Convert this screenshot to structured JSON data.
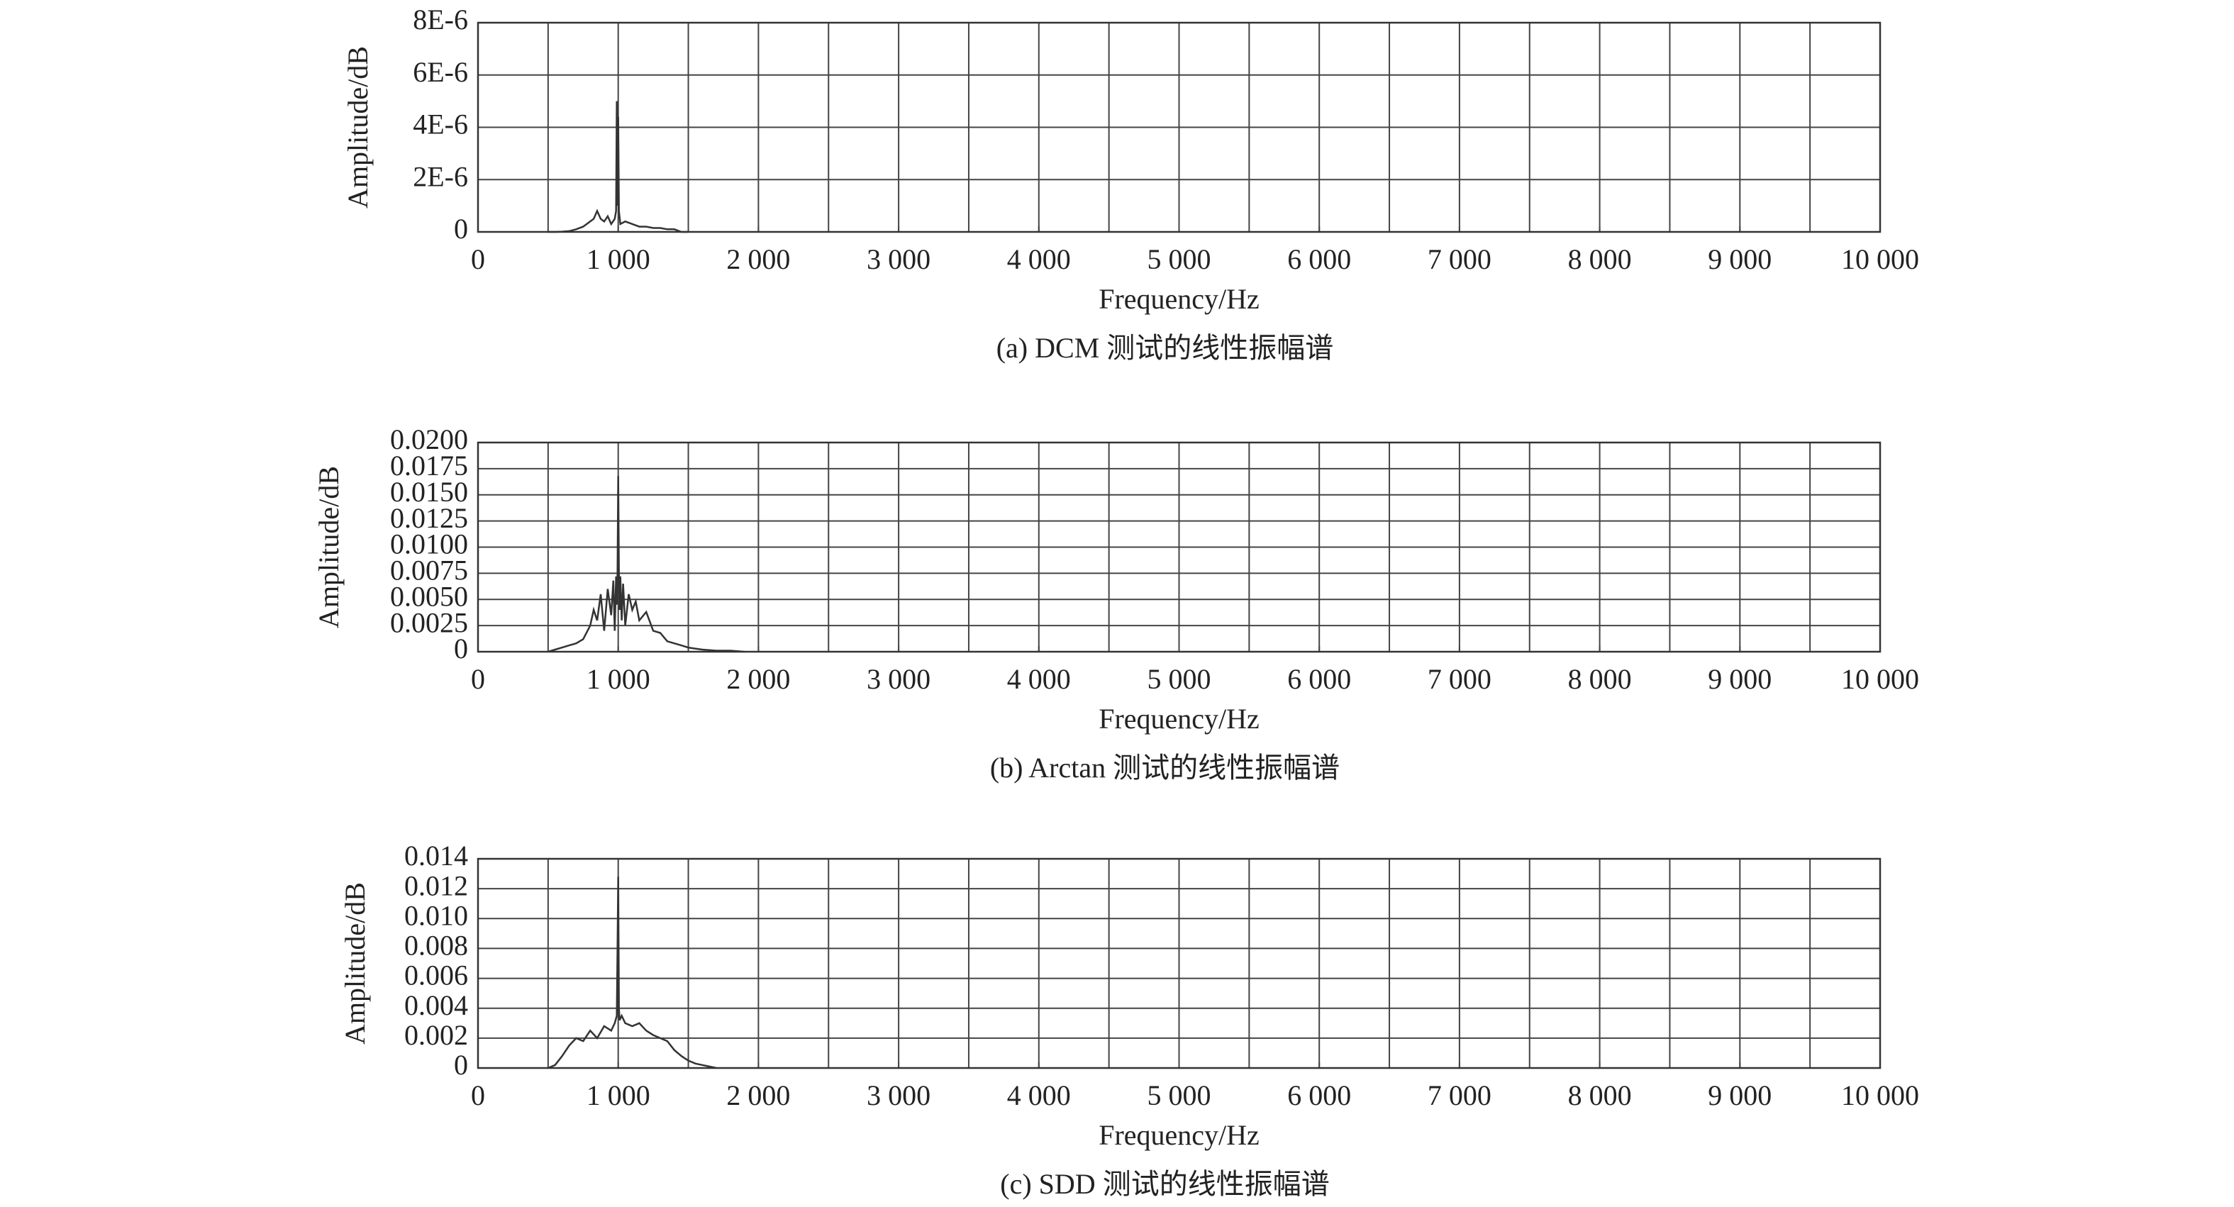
{
  "chart_data": [
    {
      "type": "line",
      "caption": "(a) DCM 测试的线性振幅谱",
      "xlabel": "Frequency/Hz",
      "ylabel": "Amplitude/dB",
      "color": "#333333",
      "grid": true,
      "x_grid_step": 500,
      "xlim": [
        0,
        10000
      ],
      "xticks": [
        0,
        {
          "value": 1000,
          "label": "1 000"
        },
        {
          "value": 2000,
          "label": "2 000"
        },
        {
          "value": 3000,
          "label": "3 000"
        },
        {
          "value": 4000,
          "label": "4 000"
        },
        {
          "value": 5000,
          "label": "5 000"
        },
        {
          "value": 6000,
          "label": "6 000"
        },
        {
          "value": 7000,
          "label": "7 000"
        },
        {
          "value": 8000,
          "label": "8 000"
        },
        {
          "value": 9000,
          "label": "9 000"
        },
        {
          "value": 10000,
          "label": "10 000"
        }
      ],
      "ylim": [
        0,
        8e-06
      ],
      "yticks": [
        0,
        {
          "value": 2e-06,
          "label": "2E-6"
        },
        {
          "value": 4e-06,
          "label": "4E-6"
        },
        {
          "value": 6e-06,
          "label": "6E-6"
        },
        {
          "value": 8e-06,
          "label": "8E-6"
        }
      ],
      "x": [
        500,
        550,
        600,
        650,
        700,
        750,
        800,
        825,
        850,
        875,
        900,
        925,
        950,
        975,
        985,
        990,
        995,
        1000,
        1005,
        1015,
        1050,
        1100,
        1150,
        1200,
        1250,
        1300,
        1350,
        1400,
        1450,
        1500
      ],
      "values": [
        0,
        0,
        1e-08,
        3e-08,
        1e-07,
        2e-07,
        4e-07,
        5e-07,
        8e-07,
        5e-07,
        4e-07,
        6e-07,
        3e-07,
        5e-07,
        8e-07,
        5e-06,
        1e-06,
        4.4e-06,
        8e-07,
        3e-07,
        4e-07,
        3e-07,
        2e-07,
        2e-07,
        1.5e-07,
        1.5e-07,
        1e-07,
        1e-07,
        0,
        0
      ]
    },
    {
      "type": "line",
      "caption": "(b) Arctan 测试的线性振幅谱",
      "xlabel": "Frequency/Hz",
      "ylabel": "Amplitude/dB",
      "color": "#333333",
      "grid": true,
      "x_grid_step": 500,
      "xlim": [
        0,
        10000
      ],
      "xticks": [
        0,
        {
          "value": 1000,
          "label": "1 000"
        },
        {
          "value": 2000,
          "label": "2 000"
        },
        {
          "value": 3000,
          "label": "3 000"
        },
        {
          "value": 4000,
          "label": "4 000"
        },
        {
          "value": 5000,
          "label": "5 000"
        },
        {
          "value": 6000,
          "label": "6 000"
        },
        {
          "value": 7000,
          "label": "7 000"
        },
        {
          "value": 8000,
          "label": "8 000"
        },
        {
          "value": 9000,
          "label": "9 000"
        },
        {
          "value": 10000,
          "label": "10 000"
        }
      ],
      "ylim": [
        0,
        0.02
      ],
      "yticks": [
        0,
        0.0025,
        {
          "value": 0.005,
          "label": "0.0050"
        },
        0.0075,
        {
          "value": 0.01,
          "label": "0.0100"
        },
        0.0125,
        {
          "value": 0.015,
          "label": "0.0150"
        },
        0.0175,
        {
          "value": 0.02,
          "label": "0.0200"
        }
      ],
      "x": [
        500,
        550,
        600,
        650,
        700,
        750,
        800,
        825,
        850,
        875,
        900,
        925,
        950,
        965,
        975,
        985,
        990,
        995,
        1000,
        1005,
        1010,
        1015,
        1025,
        1035,
        1050,
        1075,
        1100,
        1125,
        1150,
        1200,
        1250,
        1300,
        1350,
        1400,
        1450,
        1500,
        1550,
        1600,
        1700,
        1800,
        1900
      ],
      "values": [
        0,
        0.0002,
        0.0004,
        0.0006,
        0.0008,
        0.0012,
        0.0025,
        0.004,
        0.003,
        0.0055,
        0.002,
        0.006,
        0.0035,
        0.0068,
        0.002,
        0.0072,
        0.0045,
        0.0075,
        0.0168,
        0.0075,
        0.004,
        0.0072,
        0.003,
        0.0065,
        0.0025,
        0.0055,
        0.004,
        0.0048,
        0.003,
        0.0038,
        0.002,
        0.0018,
        0.001,
        0.0008,
        0.0006,
        0.0004,
        0.0003,
        0.0002,
        0.0001,
        0.0001,
        0
      ]
    },
    {
      "type": "line",
      "caption": "(c) SDD 测试的线性振幅谱",
      "xlabel": "Frequency/Hz",
      "ylabel": "Amplitude/dB",
      "color": "#333333",
      "grid": true,
      "x_grid_step": 500,
      "xlim": [
        0,
        10000
      ],
      "xticks": [
        0,
        {
          "value": 1000,
          "label": "1 000"
        },
        {
          "value": 2000,
          "label": "2 000"
        },
        {
          "value": 3000,
          "label": "3 000"
        },
        {
          "value": 4000,
          "label": "4 000"
        },
        {
          "value": 5000,
          "label": "5 000"
        },
        {
          "value": 6000,
          "label": "6 000"
        },
        {
          "value": 7000,
          "label": "7 000"
        },
        {
          "value": 8000,
          "label": "8 000"
        },
        {
          "value": 9000,
          "label": "9 000"
        },
        {
          "value": 10000,
          "label": "10 000"
        }
      ],
      "ylim": [
        0,
        0.014
      ],
      "yticks": [
        0,
        0.002,
        0.004,
        0.006,
        0.008,
        {
          "value": 0.01,
          "label": "0.010"
        },
        0.012,
        0.014
      ],
      "x": [
        500,
        550,
        600,
        650,
        700,
        750,
        800,
        850,
        900,
        950,
        975,
        990,
        995,
        1000,
        1005,
        1010,
        1025,
        1050,
        1100,
        1150,
        1200,
        1250,
        1300,
        1350,
        1400,
        1450,
        1500,
        1550,
        1600,
        1650,
        1700
      ],
      "values": [
        0,
        0.0002,
        0.0008,
        0.0015,
        0.002,
        0.0018,
        0.0025,
        0.002,
        0.0028,
        0.0025,
        0.003,
        0.0035,
        0.008,
        0.0128,
        0.004,
        0.0032,
        0.0035,
        0.003,
        0.0028,
        0.003,
        0.0025,
        0.0022,
        0.002,
        0.0018,
        0.0012,
        0.0008,
        0.0005,
        0.0003,
        0.0002,
        0.0001,
        0
      ]
    }
  ]
}
